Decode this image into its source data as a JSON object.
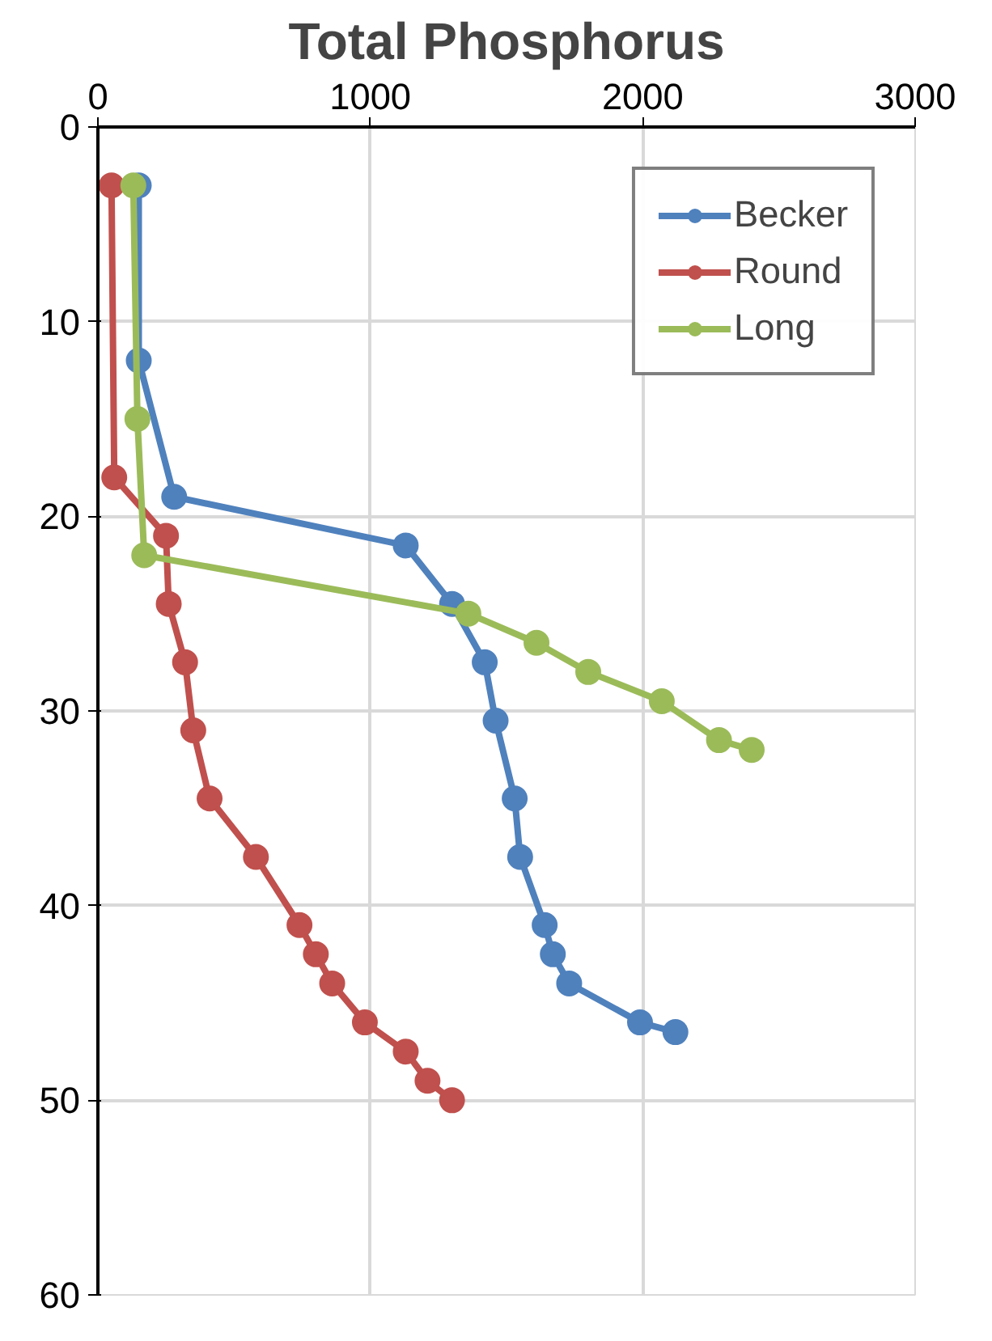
{
  "chart_data": {
    "type": "line",
    "title": "Total Phosphorus",
    "xlim": [
      0,
      3000
    ],
    "xticks": [
      0,
      1000,
      2000,
      3000
    ],
    "ylim": [
      60,
      0
    ],
    "yticks": [
      0,
      10,
      20,
      30,
      40,
      50,
      60
    ],
    "grid": true,
    "legend": "top right",
    "marker": "circle",
    "line_style": "solid",
    "series": [
      {
        "name": "Becker",
        "color": "#4f81bd",
        "x": [
          150,
          150,
          280,
          1130,
          1300,
          1420,
          1460,
          1530,
          1550,
          1640,
          1670,
          1730,
          1990,
          2120
        ],
        "values": [
          3,
          12,
          19,
          21.5,
          24.5,
          27.5,
          30.5,
          34.5,
          37.5,
          41,
          42.5,
          44,
          46,
          46.5
        ]
      },
      {
        "name": "Round",
        "color": "#c0504d",
        "x": [
          50,
          60,
          250,
          260,
          320,
          350,
          410,
          580,
          740,
          800,
          860,
          980,
          1130,
          1210,
          1300
        ],
        "values": [
          3,
          18,
          21,
          24.5,
          27.5,
          31,
          34.5,
          37.5,
          41,
          42.5,
          44,
          46,
          47.5,
          49,
          50
        ]
      },
      {
        "name": "Long",
        "color": "#9bbb59",
        "x": [
          130,
          145,
          170,
          1360,
          1610,
          1800,
          2070,
          2280,
          2400
        ],
        "values": [
          3,
          15,
          22,
          25,
          26.5,
          28,
          29.5,
          31.5,
          32
        ]
      }
    ]
  }
}
